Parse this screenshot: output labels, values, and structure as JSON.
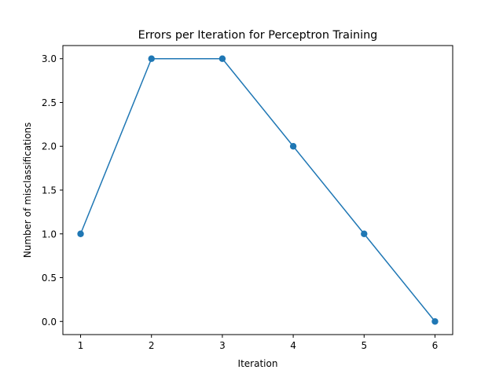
{
  "chart_data": {
    "type": "line",
    "title": "Errors per Iteration for Perceptron Training",
    "xlabel": "Iteration",
    "ylabel": "Number of misclassifications",
    "x": [
      1,
      2,
      3,
      4,
      5,
      6
    ],
    "series": [
      {
        "values": [
          1,
          3,
          3,
          2,
          1,
          0
        ],
        "color": "#1f77b4",
        "marker": "circle"
      }
    ],
    "xticks": [
      "1",
      "2",
      "3",
      "4",
      "5",
      "6"
    ],
    "yticks": [
      "0.0",
      "0.5",
      "1.0",
      "1.5",
      "2.0",
      "2.5",
      "3.0"
    ],
    "xlim": [
      0.75,
      6.25
    ],
    "ylim": [
      -0.15,
      3.15
    ],
    "grid": false,
    "legend": false
  }
}
